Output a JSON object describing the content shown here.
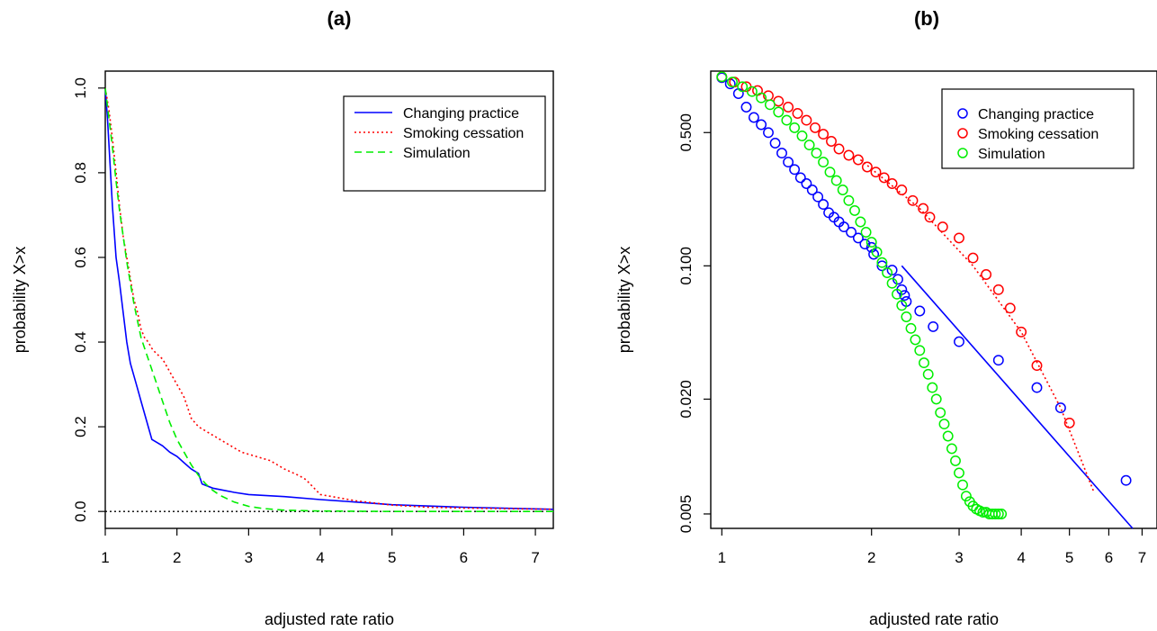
{
  "chart_data": [
    {
      "panel": "(a)",
      "type": "line",
      "title": "(a)",
      "xlabel": "adjusted rate ratio",
      "ylabel": "probability X>x",
      "xlim": [
        1,
        7.25
      ],
      "ylim": [
        -0.04,
        1.04
      ],
      "xticks": [
        1,
        2,
        3,
        4,
        5,
        6,
        7
      ],
      "yticks": [
        0.0,
        0.2,
        0.4,
        0.6,
        0.8,
        1.0
      ],
      "ytick_labels": [
        "0.0",
        "0.2",
        "0.4",
        "0.6",
        "0.8",
        "1.0"
      ],
      "legend_position": "top-right",
      "reference_line": {
        "y": 0.0,
        "style": "dotted",
        "color": "#000000"
      },
      "series": [
        {
          "name": "Changing practice",
          "color": "#0000ff",
          "style": "solid",
          "x": [
            1.0,
            1.03,
            1.06,
            1.1,
            1.15,
            1.2,
            1.25,
            1.3,
            1.35,
            1.4,
            1.45,
            1.5,
            1.55,
            1.6,
            1.65,
            1.7,
            1.8,
            1.9,
            2.0,
            2.1,
            2.2,
            2.3,
            2.35,
            2.5,
            2.8,
            3.0,
            3.5,
            4.0,
            4.5,
            5.0,
            6.0,
            7.25
          ],
          "y": [
            1.0,
            0.93,
            0.84,
            0.72,
            0.6,
            0.54,
            0.47,
            0.4,
            0.35,
            0.32,
            0.29,
            0.26,
            0.23,
            0.2,
            0.17,
            0.165,
            0.155,
            0.14,
            0.13,
            0.115,
            0.1,
            0.09,
            0.065,
            0.055,
            0.045,
            0.04,
            0.035,
            0.028,
            0.022,
            0.016,
            0.01,
            0.005
          ]
        },
        {
          "name": "Smoking cessation",
          "color": "#ff0000",
          "style": "dotted",
          "x": [
            1.0,
            1.05,
            1.1,
            1.15,
            1.2,
            1.25,
            1.3,
            1.35,
            1.4,
            1.45,
            1.5,
            1.55,
            1.6,
            1.65,
            1.7,
            1.8,
            1.9,
            2.0,
            2.1,
            2.2,
            2.3,
            2.5,
            2.7,
            2.9,
            3.1,
            3.3,
            3.5,
            3.7,
            3.8,
            4.0,
            4.5,
            5.0,
            5.5,
            6.0,
            7.25
          ],
          "y": [
            1.0,
            0.95,
            0.88,
            0.8,
            0.72,
            0.65,
            0.6,
            0.55,
            0.5,
            0.47,
            0.43,
            0.41,
            0.4,
            0.385,
            0.375,
            0.36,
            0.33,
            0.3,
            0.27,
            0.22,
            0.2,
            0.18,
            0.16,
            0.14,
            0.13,
            0.12,
            0.1,
            0.085,
            0.075,
            0.04,
            0.025,
            0.015,
            0.01,
            0.008,
            0.005
          ]
        },
        {
          "name": "Simulation",
          "color": "#00ee00",
          "style": "dashed",
          "x": [
            1.0,
            1.05,
            1.1,
            1.15,
            1.2,
            1.3,
            1.4,
            1.5,
            1.6,
            1.7,
            1.8,
            1.9,
            2.0,
            2.1,
            2.2,
            2.3,
            2.4,
            2.5,
            2.6,
            2.8,
            3.0,
            3.2,
            3.5,
            4.0,
            5.0,
            7.25
          ],
          "y": [
            1.0,
            0.93,
            0.86,
            0.78,
            0.71,
            0.59,
            0.49,
            0.41,
            0.36,
            0.31,
            0.26,
            0.21,
            0.17,
            0.14,
            0.11,
            0.085,
            0.065,
            0.05,
            0.038,
            0.022,
            0.012,
            0.007,
            0.003,
            0.001,
            0.0,
            0.0
          ]
        }
      ]
    },
    {
      "panel": "(b)",
      "type": "scatter",
      "title": "(b)",
      "xlabel": "adjusted rate ratio",
      "ylabel": "probability X>x",
      "x_scale": "log",
      "y_scale": "log",
      "xlim": [
        0.95,
        7.5
      ],
      "ylim": [
        0.0042,
        1.05
      ],
      "xticks": [
        1,
        2,
        3,
        4,
        5,
        6,
        7
      ],
      "yticks": [
        0.005,
        0.02,
        0.1,
        0.5
      ],
      "ytick_labels": [
        "0.005",
        "0.020",
        "0.100",
        "0.500"
      ],
      "legend_position": "top-right",
      "series": [
        {
          "name": "Changing practice",
          "color": "#0000ff",
          "marker": "open-circle",
          "x": [
            1.0,
            1.04,
            1.08,
            1.12,
            1.16,
            1.2,
            1.24,
            1.28,
            1.32,
            1.36,
            1.4,
            1.44,
            1.48,
            1.52,
            1.56,
            1.6,
            1.64,
            1.68,
            1.72,
            1.76,
            1.82,
            1.88,
            1.94,
            2.0,
            2.02,
            2.1,
            2.2,
            2.26,
            2.3,
            2.33,
            2.35,
            2.5,
            2.66,
            3.0,
            3.6,
            4.3,
            4.8,
            6.5
          ],
          "y": [
            0.97,
            0.9,
            0.8,
            0.68,
            0.6,
            0.55,
            0.5,
            0.44,
            0.39,
            0.35,
            0.32,
            0.29,
            0.27,
            0.25,
            0.23,
            0.21,
            0.19,
            0.18,
            0.17,
            0.16,
            0.15,
            0.14,
            0.13,
            0.125,
            0.115,
            0.1,
            0.095,
            0.085,
            0.075,
            0.07,
            0.065,
            0.058,
            0.048,
            0.04,
            0.032,
            0.023,
            0.018,
            0.0075
          ]
        },
        {
          "name": "Smoking cessation",
          "color": "#ff0000",
          "marker": "open-circle",
          "x": [
            1.0,
            1.06,
            1.12,
            1.18,
            1.24,
            1.3,
            1.36,
            1.42,
            1.48,
            1.54,
            1.6,
            1.66,
            1.72,
            1.8,
            1.88,
            1.96,
            2.04,
            2.12,
            2.2,
            2.3,
            2.42,
            2.54,
            2.62,
            2.78,
            3.0,
            3.2,
            3.4,
            3.6,
            3.8,
            4.0,
            4.3,
            5.0
          ],
          "y": [
            0.98,
            0.92,
            0.87,
            0.83,
            0.78,
            0.73,
            0.68,
            0.63,
            0.58,
            0.53,
            0.49,
            0.45,
            0.41,
            0.38,
            0.36,
            0.33,
            0.31,
            0.29,
            0.27,
            0.25,
            0.22,
            0.2,
            0.18,
            0.16,
            0.14,
            0.11,
            0.09,
            0.075,
            0.06,
            0.045,
            0.03,
            0.015
          ]
        },
        {
          "name": "Simulation",
          "color": "#00ee00",
          "marker": "open-circle",
          "x": [
            1.0,
            1.05,
            1.1,
            1.15,
            1.2,
            1.25,
            1.3,
            1.35,
            1.4,
            1.45,
            1.5,
            1.55,
            1.6,
            1.65,
            1.7,
            1.75,
            1.8,
            1.85,
            1.9,
            1.95,
            2.0,
            2.05,
            2.1,
            2.15,
            2.2,
            2.25,
            2.3,
            2.35,
            2.4,
            2.45,
            2.5,
            2.55,
            2.6,
            2.65,
            2.7,
            2.75,
            2.8,
            2.85,
            2.9,
            2.95,
            3.0,
            3.05,
            3.1,
            3.15,
            3.2,
            3.25,
            3.3,
            3.35,
            3.4,
            3.45,
            3.5,
            3.55,
            3.6,
            3.65
          ],
          "y": [
            0.98,
            0.92,
            0.87,
            0.82,
            0.76,
            0.7,
            0.64,
            0.58,
            0.53,
            0.48,
            0.43,
            0.39,
            0.35,
            0.31,
            0.28,
            0.25,
            0.22,
            0.195,
            0.17,
            0.15,
            0.133,
            0.118,
            0.104,
            0.092,
            0.081,
            0.071,
            0.062,
            0.054,
            0.047,
            0.041,
            0.036,
            0.031,
            0.027,
            0.023,
            0.02,
            0.017,
            0.0148,
            0.0128,
            0.011,
            0.0095,
            0.0082,
            0.0071,
            0.0062,
            0.0058,
            0.0055,
            0.0053,
            0.0052,
            0.0051,
            0.0051,
            0.005,
            0.005,
            0.005,
            0.005,
            0.005
          ]
        }
      ],
      "fit_lines": [
        {
          "series": "Changing practice",
          "color": "#0000ff",
          "style": "solid",
          "x": [
            2.3,
            6.7
          ],
          "y": [
            0.1,
            0.0042
          ]
        },
        {
          "series": "Smoking cessation",
          "color": "#ff0000",
          "style": "dotted",
          "x": [
            1.9,
            2.5,
            3.2,
            4.0,
            4.8,
            5.6
          ],
          "y": [
            0.36,
            0.2,
            0.1,
            0.045,
            0.018,
            0.0065
          ]
        }
      ]
    }
  ]
}
